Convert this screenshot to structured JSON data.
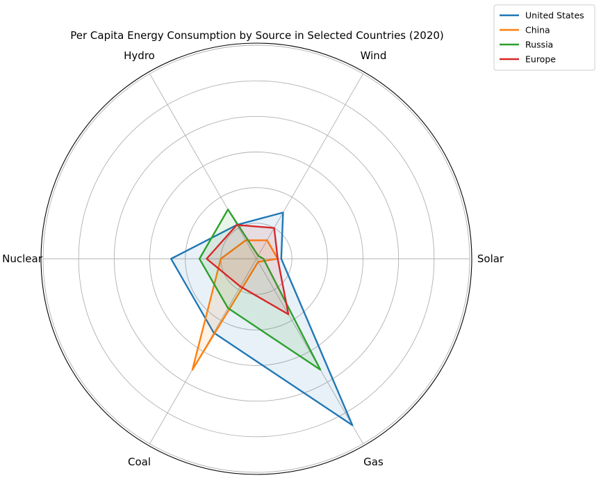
{
  "chart_data": {
    "type": "radar",
    "title": "Per Capita Energy Consumption by Source in Selected Countries (2020)",
    "axes": [
      "Solar",
      "Wind",
      "Hydro",
      "Nuclear",
      "Coal",
      "Gas"
    ],
    "rlim": [
      0,
      6
    ],
    "grid": true,
    "legend": "top-right",
    "series": [
      {
        "name": "United States",
        "color": "#1f77b4",
        "values": [
          0.7,
          1.5,
          1.1,
          2.4,
          2.4,
          5.4
        ]
      },
      {
        "name": "China",
        "color": "#ff7f0e",
        "values": [
          0.6,
          0.6,
          0.6,
          1.0,
          3.6,
          0.1
        ]
      },
      {
        "name": "Russia",
        "color": "#2ca02c",
        "values": [
          0.2,
          0.1,
          1.6,
          1.6,
          1.6,
          3.6
        ]
      },
      {
        "name": "Europe",
        "color": "#d62728",
        "values": [
          0.6,
          1.0,
          1.1,
          1.4,
          0.9,
          1.8
        ]
      }
    ]
  }
}
